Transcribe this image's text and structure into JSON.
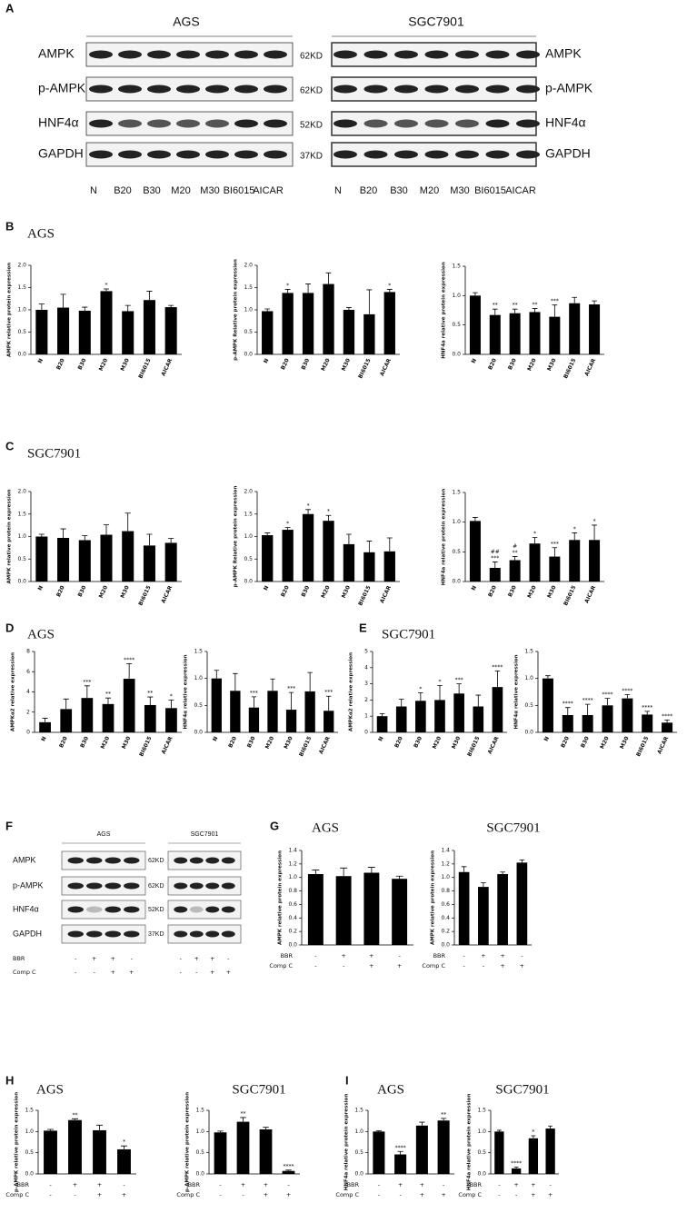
{
  "panels": [
    {
      "letter": "A"
    },
    {
      "letter": "B",
      "title": "AGS"
    },
    {
      "letter": "C",
      "title": "SGC7901"
    },
    {
      "letter": "D",
      "title": "AGS"
    },
    {
      "letter": "E",
      "title": "SGC7901"
    },
    {
      "letter": "F"
    },
    {
      "letter": "G"
    },
    {
      "letter": "H"
    },
    {
      "letter": "I"
    }
  ],
  "blots": [
    {
      "sizes": [
        "62KD",
        "62KD",
        "52KD",
        "37KD"
      ],
      "groups": [
        {
          "cell": "AGS",
          "proteins": [
            "AMPK",
            "p-AMPK",
            "HNF4α",
            "GAPDH"
          ],
          "lanes": [
            "N",
            "B20",
            "B30",
            "M20",
            "M30",
            "BI6015",
            "AICAR"
          ]
        },
        {
          "cell": "SGC7901",
          "proteins": [
            "AMPK",
            "p-AMPK",
            "HNF4α",
            "GAPDH"
          ],
          "lanes": [
            "N",
            "B20",
            "B30",
            "M20",
            "M30",
            "BI6015",
            "AICAR"
          ]
        }
      ]
    },
    {
      "proteins": [
        "AMPK",
        "p-AMPK",
        "HNF4α",
        "GAPDH"
      ],
      "sizes": [
        "62KD",
        "62KD",
        "52KD",
        "37KD"
      ],
      "condition_names": [
        "BBR",
        "Comp C"
      ],
      "groups": [
        {
          "cell": "AGS",
          "signs": [
            [
              "-",
              "+",
              "+",
              "-"
            ],
            [
              "-",
              "-",
              "+",
              "+"
            ]
          ]
        },
        {
          "cell": "SGC7901",
          "signs": [
            [
              "-",
              "+",
              "+",
              "-"
            ],
            [
              "-",
              "-",
              "+",
              "+"
            ]
          ]
        }
      ]
    }
  ],
  "chart_data": [
    {
      "type": "bar",
      "ylabel": "AMPK relative protein expression",
      "categories": [
        "N",
        "B20",
        "B30",
        "M20",
        "M30",
        "BI6015",
        "AICAR"
      ],
      "values": [
        1.0,
        1.05,
        0.98,
        1.42,
        0.97,
        1.22,
        1.06
      ],
      "errors": [
        0.13,
        0.3,
        0.08,
        0.05,
        0.13,
        0.2,
        0.04
      ],
      "annotations": [
        null,
        null,
        null,
        "*",
        null,
        null,
        null
      ],
      "ylim": [
        0,
        2
      ],
      "yticks": [
        {
          "value": 0,
          "label": "0.0"
        },
        0.5,
        {
          "value": 1,
          "label": "1.0"
        },
        1.5,
        {
          "value": 2,
          "label": "2.0"
        }
      ],
      "color": "#000000"
    },
    {
      "type": "bar",
      "ylabel": "p-AMPK Relative protein expression",
      "categories": [
        "N",
        "B20",
        "B30",
        "M20",
        "M30",
        "BI6015",
        "AICAR"
      ],
      "values": [
        0.97,
        1.38,
        1.38,
        1.58,
        1.0,
        0.9,
        1.4
      ],
      "errors": [
        0.05,
        0.08,
        0.2,
        0.25,
        0.05,
        0.55,
        0.06
      ],
      "annotations": [
        null,
        "*",
        null,
        null,
        null,
        null,
        "*"
      ],
      "ylim": [
        0,
        2
      ],
      "yticks": [
        {
          "value": 0,
          "label": "0.0"
        },
        0.5,
        {
          "value": 1,
          "label": "1.0"
        },
        1.5,
        {
          "value": 2,
          "label": "2.0"
        }
      ],
      "color": "#000000"
    },
    {
      "type": "bar",
      "ylabel": "HNF4a relative protein expression",
      "categories": [
        "N",
        "B20",
        "B30",
        "M20",
        "M30",
        "BI6015",
        "AICAR"
      ],
      "values": [
        1.0,
        0.67,
        0.7,
        0.72,
        0.64,
        0.87,
        0.85
      ],
      "errors": [
        0.05,
        0.1,
        0.07,
        0.06,
        0.2,
        0.1,
        0.06
      ],
      "annotations": [
        null,
        "**",
        "**",
        "**",
        "***",
        null,
        null
      ],
      "ylim": [
        0,
        1.5
      ],
      "yticks": [
        {
          "value": 0,
          "label": "0.0"
        },
        0.5,
        {
          "value": 1,
          "label": "1.0"
        },
        1.5
      ],
      "color": "#000000"
    },
    {
      "type": "bar",
      "ylabel": "AMPK relative protein expression",
      "categories": [
        "N",
        "B20",
        "B30",
        "M20",
        "M30",
        "BI6015",
        "AICAR"
      ],
      "values": [
        1.0,
        0.97,
        0.92,
        1.04,
        1.12,
        0.8,
        0.86
      ],
      "errors": [
        0.05,
        0.2,
        0.1,
        0.22,
        0.4,
        0.25,
        0.1
      ],
      "ylim": [
        0,
        2
      ],
      "yticks": [
        {
          "value": 0,
          "label": "0.0"
        },
        0.5,
        {
          "value": 1,
          "label": "1.0"
        },
        1.5,
        {
          "value": 2,
          "label": "2.0"
        }
      ],
      "color": "#000000"
    },
    {
      "type": "bar",
      "ylabel": "p-AMPK Relative protein expression",
      "categories": [
        "N",
        "B20",
        "B30",
        "M20",
        "M30",
        "BI6015",
        "AICAR"
      ],
      "values": [
        1.03,
        1.15,
        1.5,
        1.35,
        0.83,
        0.65,
        0.67
      ],
      "errors": [
        0.05,
        0.05,
        0.1,
        0.12,
        0.22,
        0.25,
        0.3
      ],
      "annotations": [
        null,
        "*",
        "*",
        "*",
        null,
        null,
        null
      ],
      "ylim": [
        0,
        2
      ],
      "yticks": [
        {
          "value": 0,
          "label": "0.0"
        },
        0.5,
        {
          "value": 1,
          "label": "1.0"
        },
        1.5,
        {
          "value": 2,
          "label": "2.0"
        }
      ],
      "color": "#000000"
    },
    {
      "type": "bar",
      "ylabel": "HNF4a relative protein expression",
      "categories": [
        "N",
        "B20",
        "B30",
        "M20",
        "M30",
        "BI6015",
        "AICAR"
      ],
      "values": [
        1.02,
        0.23,
        0.36,
        0.64,
        0.42,
        0.7,
        0.7
      ],
      "errors": [
        0.06,
        0.1,
        0.06,
        0.1,
        0.15,
        0.12,
        0.25
      ],
      "annotations": [
        null,
        "***",
        "**",
        "*",
        "***",
        "*",
        "*"
      ],
      "annotations2": [
        null,
        "##",
        "#",
        null,
        null,
        null,
        null
      ],
      "ylim": [
        0,
        1.5
      ],
      "yticks": [
        {
          "value": 0,
          "label": "0.0"
        },
        0.5,
        {
          "value": 1,
          "label": "1.0"
        },
        1.5
      ],
      "color": "#000000"
    },
    {
      "type": "bar",
      "ylabel": "AMPKα2 relative expression",
      "categories": [
        "N",
        "B20",
        "B30",
        "M20",
        "M30",
        "BI6015",
        "AICAR"
      ],
      "values": [
        1.0,
        2.3,
        3.4,
        2.8,
        5.3,
        2.7,
        2.4
      ],
      "errors": [
        0.4,
        1.0,
        1.2,
        0.6,
        1.5,
        0.8,
        0.8
      ],
      "annotations": [
        null,
        null,
        "***",
        "**",
        "****",
        "**",
        "*"
      ],
      "ylim": [
        0,
        8
      ],
      "yticks": [
        0,
        2,
        4,
        6,
        8
      ],
      "color": "#000000"
    },
    {
      "type": "bar",
      "ylabel": "HNF4α relative expression",
      "categories": [
        "N",
        "B20",
        "B30",
        "M20",
        "M30",
        "BI6015",
        "AICAR"
      ],
      "values": [
        1.0,
        0.77,
        0.46,
        0.77,
        0.42,
        0.76,
        0.4
      ],
      "errors": [
        0.15,
        0.32,
        0.2,
        0.22,
        0.32,
        0.35,
        0.27
      ],
      "annotations": [
        null,
        null,
        "***",
        null,
        "***",
        null,
        "***"
      ],
      "ylim": [
        0,
        1.5
      ],
      "yticks": [
        {
          "value": 0,
          "label": "0.0"
        },
        0.5,
        {
          "value": 1,
          "label": "1.0"
        },
        1.5
      ],
      "color": "#000000"
    },
    {
      "type": "bar",
      "ylabel": "AMPKα2 relative expression",
      "categories": [
        "N",
        "B20",
        "B30",
        "M20",
        "M30",
        "BI6015",
        "AICAR"
      ],
      "values": [
        1.0,
        1.6,
        1.95,
        2.0,
        2.4,
        1.6,
        2.8
      ],
      "errors": [
        0.15,
        0.45,
        0.5,
        0.9,
        0.6,
        0.7,
        1.0
      ],
      "annotations": [
        null,
        null,
        "*",
        "*",
        "***",
        null,
        "****"
      ],
      "ylim": [
        0,
        5
      ],
      "yticks": [
        0,
        1,
        2,
        3,
        4,
        5
      ],
      "color": "#000000"
    },
    {
      "type": "bar",
      "ylabel": "HNF4α relative expression",
      "categories": [
        "N",
        "B20",
        "B30",
        "M20",
        "M30",
        "BI6015",
        "AICAR"
      ],
      "values": [
        1.0,
        0.32,
        0.32,
        0.5,
        0.63,
        0.33,
        0.18
      ],
      "errors": [
        0.05,
        0.14,
        0.2,
        0.13,
        0.07,
        0.06,
        0.05
      ],
      "annotations": [
        null,
        "****",
        "****",
        "****",
        "****",
        "****",
        "****"
      ],
      "ylim": [
        0,
        1.5
      ],
      "yticks": [
        {
          "value": 0,
          "label": "0.0"
        },
        0.5,
        {
          "value": 1,
          "label": "1.0"
        },
        1.5
      ],
      "color": "#000000"
    },
    {
      "type": "bar",
      "title": "AGS",
      "ylabel": "AMPK relative protein expression",
      "values": [
        1.05,
        1.02,
        1.07,
        0.98
      ],
      "errors": [
        0.06,
        0.12,
        0.08,
        0.04
      ],
      "conditions": [
        {
          "name": "BBR",
          "signs": [
            "-",
            "+",
            "+",
            "-"
          ]
        },
        {
          "name": "Comp C",
          "signs": [
            "-",
            "-",
            "+",
            "+"
          ]
        }
      ],
      "ylim": [
        0,
        1.4
      ],
      "yticks": [
        {
          "value": 0,
          "label": "0.0"
        },
        0.2,
        0.4,
        0.6,
        0.8,
        {
          "value": 1,
          "label": "1.0"
        },
        1.2,
        1.4
      ],
      "color": "#000000"
    },
    {
      "type": "bar",
      "title": "SGC7901",
      "ylabel": "AMPK relative protein expression",
      "values": [
        1.08,
        0.86,
        1.05,
        1.22
      ],
      "errors": [
        0.08,
        0.06,
        0.03,
        0.04
      ],
      "conditions": [
        {
          "name": "BBR",
          "signs": [
            "-",
            "+",
            "+",
            "-"
          ]
        },
        {
          "name": "Comp C",
          "signs": [
            "-",
            "-",
            "+",
            "+"
          ]
        }
      ],
      "ylim": [
        0,
        1.4
      ],
      "yticks": [
        {
          "value": 0,
          "label": "0.0"
        },
        0.2,
        0.4,
        0.6,
        0.8,
        {
          "value": 1,
          "label": "1.0"
        },
        1.2,
        1.4
      ],
      "color": "#000000"
    },
    {
      "type": "bar",
      "title": "AGS",
      "ylabel": "p-AMPK relative protein expression",
      "values": [
        1.02,
        1.27,
        1.03,
        0.58
      ],
      "errors": [
        0.03,
        0.03,
        0.12,
        0.08
      ],
      "annotations": [
        null,
        "**",
        null,
        "*"
      ],
      "conditions": [
        {
          "name": "BBR",
          "signs": [
            "-",
            "+",
            "+",
            "-"
          ]
        },
        {
          "name": "Comp C",
          "signs": [
            "-",
            "-",
            "+",
            "+"
          ]
        }
      ],
      "ylim": [
        0,
        1.5
      ],
      "yticks": [
        {
          "value": 0,
          "label": "0.0"
        },
        0.5,
        {
          "value": 1,
          "label": "1.0"
        },
        1.5
      ],
      "color": "#000000"
    },
    {
      "type": "bar",
      "title": "SGC7901",
      "ylabel": "p-AMPK relative protein expression",
      "values": [
        0.98,
        1.23,
        1.05,
        0.07
      ],
      "errors": [
        0.03,
        0.1,
        0.05,
        0.02
      ],
      "annotations": [
        null,
        "**",
        null,
        "****"
      ],
      "conditions": [
        {
          "name": "BBR",
          "signs": [
            "-",
            "+",
            "+",
            "-"
          ]
        },
        {
          "name": "Comp C",
          "signs": [
            "-",
            "-",
            "+",
            "+"
          ]
        }
      ],
      "ylim": [
        0,
        1.5
      ],
      "yticks": [
        {
          "value": 0,
          "label": "0.0"
        },
        0.5,
        {
          "value": 1,
          "label": "1.0"
        },
        1.5
      ],
      "color": "#000000"
    },
    {
      "type": "bar",
      "title": "AGS",
      "ylabel": "HNF4a relative protein expression",
      "values": [
        1.0,
        0.46,
        1.14,
        1.26
      ],
      "errors": [
        0.02,
        0.07,
        0.08,
        0.05
      ],
      "annotations": [
        null,
        "****",
        null,
        "**"
      ],
      "conditions": [
        {
          "name": "BBR",
          "signs": [
            "-",
            "+",
            "+",
            "-"
          ]
        },
        {
          "name": "Comp C",
          "signs": [
            "-",
            "-",
            "+",
            "+"
          ]
        }
      ],
      "ylim": [
        0,
        1.5
      ],
      "yticks": [
        {
          "value": 0,
          "label": "0.0"
        },
        0.5,
        {
          "value": 1,
          "label": "1.0"
        },
        1.5
      ],
      "color": "#000000"
    },
    {
      "type": "bar",
      "title": "SGC7901",
      "ylabel": "HNF4a relative protein expression",
      "values": [
        1.0,
        0.13,
        0.84,
        1.07
      ],
      "errors": [
        0.03,
        0.03,
        0.06,
        0.06
      ],
      "annotations": [
        null,
        "****",
        "*",
        null
      ],
      "conditions": [
        {
          "name": "BBR",
          "signs": [
            "-",
            "+",
            "+",
            "-"
          ]
        },
        {
          "name": "Comp C",
          "signs": [
            "-",
            "-",
            "+",
            "+"
          ]
        }
      ],
      "ylim": [
        0,
        1.5
      ],
      "yticks": [
        {
          "value": 0,
          "label": "0.0"
        },
        0.5,
        {
          "value": 1,
          "label": "1.0"
        },
        1.5
      ],
      "color": "#000000"
    }
  ]
}
